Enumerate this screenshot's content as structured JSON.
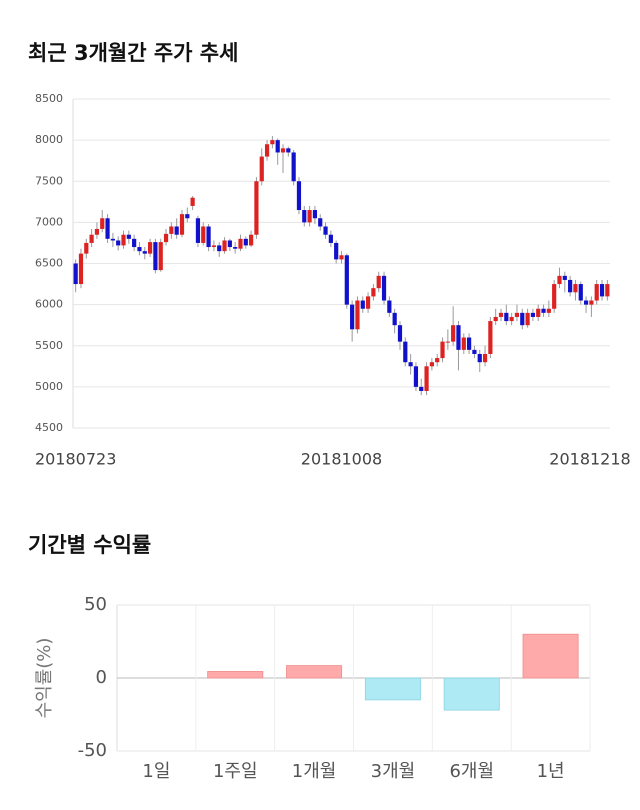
{
  "chart_data": [
    {
      "type": "candlestick",
      "title": "최근 3개월간 주가 추세",
      "categories": [
        "20180723",
        null,
        null,
        null,
        null,
        null,
        null,
        null,
        null,
        null,
        null,
        null,
        null,
        null,
        null,
        null,
        null,
        null,
        null,
        null,
        null,
        null,
        null,
        null,
        null,
        null,
        null,
        null,
        null,
        null,
        null,
        null,
        null,
        null,
        null,
        null,
        null,
        null,
        null,
        null,
        null,
        null,
        null,
        null,
        null,
        null,
        null,
        null,
        null,
        null,
        "20181008",
        null,
        null,
        null,
        null,
        null,
        null,
        null,
        null,
        null,
        null,
        null,
        null,
        null,
        null,
        null,
        null,
        null,
        null,
        null,
        null,
        null,
        null,
        null,
        null,
        null,
        null,
        null,
        null,
        null,
        null,
        null,
        null,
        null,
        null,
        null,
        null,
        null,
        null,
        null,
        null,
        null,
        null,
        null,
        null,
        null,
        null,
        null,
        null,
        null,
        "20181218"
      ],
      "open": [
        6500,
        6250,
        6620,
        6750,
        6850,
        6920,
        7050,
        6800,
        6780,
        6720,
        6850,
        6800,
        6700,
        6650,
        6620,
        6760,
        6420,
        6760,
        6860,
        6950,
        6850,
        7100,
        7200,
        7050,
        6750,
        6950,
        6700,
        6720,
        6650,
        6780,
        6700,
        6680,
        6800,
        6720,
        6850,
        7500,
        7800,
        7950,
        8000,
        7850,
        7900,
        7850,
        7500,
        7150,
        7000,
        7150,
        7050,
        6950,
        6850,
        6750,
        6550,
        6600,
        6000,
        5700,
        6050,
        5950,
        6100,
        6200,
        6350,
        6050,
        5900,
        5750,
        5550,
        5300,
        5250,
        5000,
        4950,
        5250,
        5300,
        5350,
        5550,
        5550,
        5750,
        5450,
        5600,
        5450,
        5400,
        5300,
        5400,
        5800,
        5850,
        5900,
        5800,
        5850,
        5900,
        5750,
        5900,
        5850,
        5950,
        5900,
        5950,
        6250,
        6350,
        6300,
        6150,
        6250,
        6050,
        6000,
        6050,
        6250,
        6100
      ],
      "high": [
        6550,
        6680,
        6800,
        6920,
        7000,
        7150,
        7100,
        6870,
        6830,
        6900,
        6900,
        6850,
        6760,
        6700,
        6800,
        6800,
        6800,
        6920,
        7000,
        7050,
        7150,
        7180,
        7320,
        7080,
        7000,
        6980,
        6780,
        6760,
        6820,
        6800,
        6760,
        6850,
        6830,
        6900,
        7550,
        7900,
        8000,
        8050,
        8020,
        7950,
        7920,
        7880,
        7550,
        7200,
        7200,
        7200,
        7100,
        7000,
        6900,
        6780,
        6650,
        6620,
        6050,
        6100,
        6100,
        6150,
        6250,
        6400,
        6400,
        6100,
        5950,
        5800,
        5600,
        5400,
        5300,
        5100,
        5300,
        5350,
        5400,
        5600,
        5700,
        5980,
        5800,
        5650,
        5650,
        5500,
        5450,
        5500,
        5850,
        5950,
        5950,
        6000,
        5900,
        6000,
        5950,
        5950,
        5950,
        6000,
        6000,
        6050,
        6300,
        6450,
        6400,
        6350,
        6300,
        6280,
        6100,
        6100,
        6300,
        6300,
        6300
      ],
      "low": [
        6150,
        6200,
        6560,
        6700,
        6800,
        6880,
        6750,
        6700,
        6660,
        6680,
        6740,
        6650,
        6600,
        6550,
        6580,
        6380,
        6400,
        6720,
        6800,
        6800,
        6820,
        7000,
        7150,
        6700,
        6720,
        6650,
        6650,
        6580,
        6620,
        6650,
        6620,
        6650,
        6680,
        6700,
        6800,
        7450,
        7750,
        7900,
        7700,
        7600,
        7800,
        7450,
        7100,
        6950,
        6950,
        6980,
        6900,
        6800,
        6700,
        6500,
        6500,
        5950,
        5550,
        5650,
        5900,
        5900,
        6050,
        6150,
        6000,
        5850,
        5650,
        5450,
        5250,
        5150,
        4950,
        4900,
        4900,
        5200,
        5250,
        5300,
        5450,
        5500,
        5200,
        5400,
        5400,
        5350,
        5180,
        5250,
        5350,
        5750,
        5800,
        5750,
        5750,
        5800,
        5700,
        5720,
        5800,
        5800,
        5850,
        5850,
        5900,
        6200,
        6150,
        6100,
        6050,
        6000,
        5900,
        5850,
        6000,
        6050,
        6050
      ],
      "close": [
        6250,
        6620,
        6750,
        6850,
        6920,
        7050,
        6800,
        6780,
        6720,
        6850,
        6800,
        6700,
        6650,
        6620,
        6760,
        6420,
        6760,
        6860,
        6950,
        6850,
        7100,
        7050,
        7300,
        6750,
        6950,
        6700,
        6720,
        6650,
        6780,
        6700,
        6680,
        6800,
        6720,
        6850,
        7500,
        7800,
        7950,
        8000,
        7850,
        7900,
        7850,
        7500,
        7150,
        7000,
        7150,
        7050,
        6950,
        6850,
        6750,
        6550,
        6600,
        6000,
        5700,
        6050,
        5950,
        6100,
        6200,
        6350,
        6050,
        5900,
        5750,
        5550,
        5300,
        5250,
        5000,
        4950,
        5250,
        5300,
        5350,
        5550,
        5550,
        5750,
        5450,
        5600,
        5450,
        5400,
        5300,
        5400,
        5800,
        5850,
        5900,
        5800,
        5850,
        5900,
        5750,
        5900,
        5850,
        5950,
        5900,
        5950,
        6250,
        6350,
        6300,
        6150,
        6250,
        6050,
        6000,
        6050,
        6250,
        6100,
        6250
      ],
      "up_color": "#dd2222",
      "down_color": "#1111cc",
      "ylim": [
        4500,
        8500
      ],
      "yticks": [
        4500,
        5000,
        5500,
        6000,
        6500,
        7000,
        7500,
        8000,
        8500
      ],
      "grid": true
    },
    {
      "type": "bar",
      "title": "기간별 수익률",
      "y_label": "수익률(%)",
      "categories": [
        "1일",
        "1주일",
        "1개월",
        "3개월",
        "6개월",
        "1년"
      ],
      "values": [
        0,
        4.5,
        8.5,
        -15,
        -22,
        30
      ],
      "positive_color": "#ffaaaa",
      "negative_color": "#aeeaf4",
      "ylim": [
        -50,
        50
      ],
      "yticks": [
        -50,
        0,
        50
      ],
      "grid": true
    }
  ]
}
